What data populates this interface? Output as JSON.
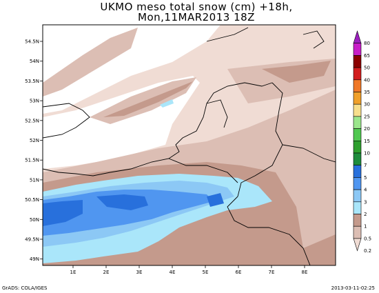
{
  "title_line1": "UKMO meso total snow (cm) +18h,",
  "title_line2": "Mon,11MAR2013 18Z",
  "lat_labels": [
    "54.5N",
    "54N",
    "53.5N",
    "53N",
    "52.5N",
    "52N",
    "51.5N",
    "51N",
    "50.5N",
    "50N",
    "49.5N",
    "49N"
  ],
  "lon_labels": [
    "1E",
    "2E",
    "3E",
    "4E",
    "5E",
    "6E",
    "7E",
    "8E"
  ],
  "legend": [
    {
      "label": "80",
      "color": "#9c1fbf"
    },
    {
      "label": "65",
      "color": "#c81ec8"
    },
    {
      "label": "50",
      "color": "#8b0000"
    },
    {
      "label": "40",
      "color": "#d21e1e"
    },
    {
      "label": "35",
      "color": "#f07828"
    },
    {
      "label": "30",
      "color": "#f0a02a"
    },
    {
      "label": "25",
      "color": "#f7de8c"
    },
    {
      "label": "20",
      "color": "#9be68c"
    },
    {
      "label": "15",
      "color": "#50c850"
    },
    {
      "label": "10",
      "color": "#2ea02e"
    },
    {
      "label": "7",
      "color": "#1e8c3c"
    },
    {
      "label": "5",
      "color": "#2870dc"
    },
    {
      "label": "4",
      "color": "#5096f0"
    },
    {
      "label": "3",
      "color": "#8cc8f5"
    },
    {
      "label": "2",
      "color": "#aae6fa"
    },
    {
      "label": "1",
      "color": "#c49a8c"
    },
    {
      "label": "0.5",
      "color": "#dcbeb4"
    },
    {
      "label": "0.2",
      "color": "#f0dcd4"
    }
  ],
  "credit": "GrADS: COLA/IGES",
  "timestamp": "2013-03-11-02:25"
}
